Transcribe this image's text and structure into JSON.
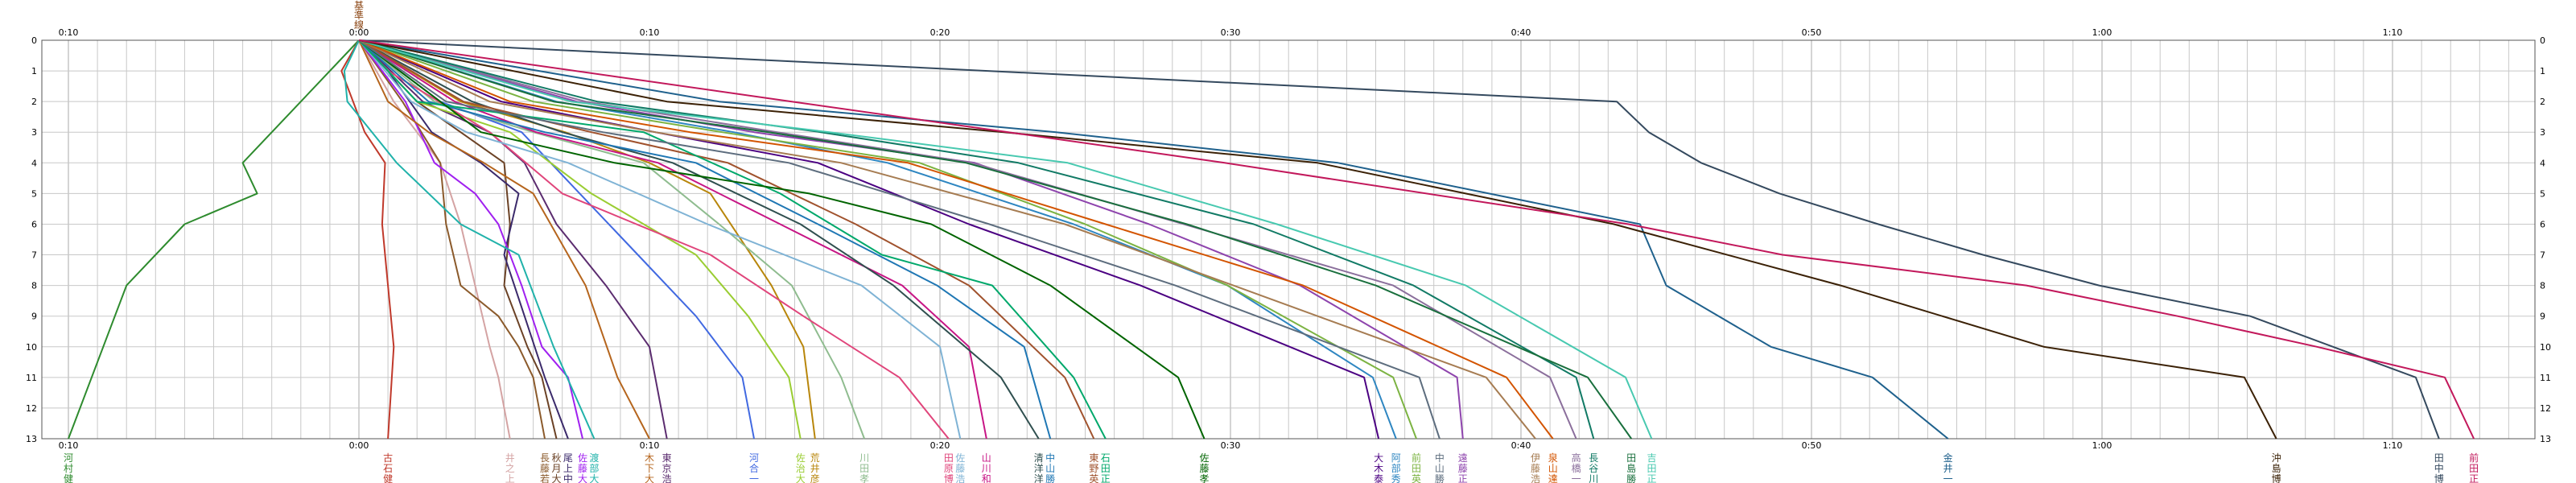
{
  "chart_data": {
    "type": "line",
    "x_unit": "minutes",
    "xlim": [
      -10,
      75
    ],
    "x_ticks": [
      {
        "value": -10,
        "label": "0:10"
      },
      {
        "value": 0,
        "label": "0:00"
      },
      {
        "value": 10,
        "label": "0:10"
      },
      {
        "value": 20,
        "label": "0:20"
      },
      {
        "value": 30,
        "label": "0:30"
      },
      {
        "value": 40,
        "label": "0:40"
      },
      {
        "value": 50,
        "label": "0:50"
      },
      {
        "value": 60,
        "label": "1:00"
      },
      {
        "value": 70,
        "label": "1:10"
      }
    ],
    "ylim": [
      0,
      13
    ],
    "y_ticks": [
      "0",
      "1",
      "2",
      "3",
      "4",
      "5",
      "6",
      "7",
      "8",
      "9",
      "10",
      "11",
      "12",
      "13"
    ],
    "y_ticks_right": [
      "0",
      "1",
      "2",
      "3",
      "4",
      "5",
      "6",
      "7",
      "8",
      "9",
      "10",
      "11",
      "12",
      "13"
    ],
    "top_marker": {
      "text": "基準線",
      "color": "#8b4513",
      "x": 0
    },
    "grid": true,
    "series": [
      {
        "name": "河村健",
        "color": "#2e8b2e",
        "x": [
          0,
          -2,
          -4,
          -3.5,
          -6,
          -8,
          -10
        ],
        "y": [
          0,
          2,
          4,
          5,
          6,
          8,
          13
        ]
      },
      {
        "name": "古石健",
        "color": "#c0392b",
        "x": [
          0,
          -0.6,
          0.2,
          0.9,
          0.8,
          1.0,
          1.1,
          1.2,
          1.0
        ],
        "y": [
          0,
          1,
          3,
          4,
          6,
          8,
          9,
          10,
          13
        ]
      },
      {
        "name": "井之上",
        "color": "#d4a3a3",
        "x": [
          0,
          1.2,
          2.8,
          3.5,
          4.0,
          4.5,
          4.8,
          5.2
        ],
        "y": [
          0,
          2,
          4,
          6,
          8,
          10,
          11,
          13
        ]
      },
      {
        "name": "長藤若",
        "color": "#8b5a2b",
        "x": [
          0,
          1.5,
          2.8,
          3.0,
          3.5,
          4.8,
          5.5,
          6.0,
          6.4
        ],
        "y": [
          0,
          2,
          4,
          6,
          8,
          9,
          10,
          11,
          13
        ]
      },
      {
        "name": "秋月大",
        "color": "#6b4226",
        "x": [
          0,
          2.0,
          3.5,
          5.0,
          5.2,
          5.0,
          5.8,
          6.3,
          6.8
        ],
        "y": [
          0,
          2,
          3,
          4,
          6,
          8,
          10,
          11,
          13
        ]
      },
      {
        "name": "尾上中",
        "color": "#3b2a6b",
        "x": [
          0,
          1.0,
          2.5,
          4.2,
          5.5,
          5.0,
          5.7,
          6.4,
          7.2
        ],
        "y": [
          0,
          1,
          3,
          4,
          5,
          7,
          9,
          11,
          13
        ]
      },
      {
        "name": "佐藤大",
        "color": "#a020f0",
        "x": [
          0,
          1.6,
          2.6,
          4.0,
          4.8,
          5.6,
          6.3,
          7.2,
          7.7
        ],
        "y": [
          0,
          2,
          4,
          5,
          6,
          8,
          10,
          11,
          13
        ]
      },
      {
        "name": "渡部大",
        "color": "#20b2aa",
        "x": [
          0,
          -0.5,
          -0.4,
          1.3,
          3.5,
          5.5,
          6.7,
          8.1
        ],
        "y": [
          0,
          1,
          2,
          4,
          6,
          7,
          10,
          13
        ]
      },
      {
        "name": "木下大",
        "color": "#b5651d",
        "x": [
          0,
          1.0,
          2.4,
          4.3,
          6.0,
          7.8,
          8.9,
          10.0
        ],
        "y": [
          0,
          2,
          3,
          4,
          5,
          8,
          11,
          13
        ]
      },
      {
        "name": "東京浩",
        "color": "#5b2c6f",
        "x": [
          0,
          2.2,
          4.5,
          5.7,
          6.8,
          8.5,
          10.0,
          10.6
        ],
        "y": [
          0,
          2,
          3,
          4,
          6,
          8,
          10,
          13
        ]
      },
      {
        "name": "河合一",
        "color": "#4169e1",
        "x": [
          0,
          2.8,
          5.6,
          7.6,
          9.6,
          11.6,
          13.2,
          13.6
        ],
        "y": [
          0,
          2,
          3,
          5,
          7,
          9,
          11,
          13
        ]
      },
      {
        "name": "佐治大",
        "color": "#9acd32",
        "x": [
          0,
          2.0,
          5.2,
          8.0,
          11.6,
          13.4,
          14.8,
          15.2
        ],
        "y": [
          0,
          2,
          3,
          5,
          7,
          9,
          11,
          13
        ]
      },
      {
        "name": "荒井彦",
        "color": "#b8860b",
        "x": [
          0,
          3.5,
          7.1,
          10.0,
          12.1,
          14.2,
          15.3,
          15.7
        ],
        "y": [
          0,
          2,
          3,
          4,
          5,
          8,
          10,
          13
        ]
      },
      {
        "name": "川田孝",
        "color": "#8fbc8f",
        "x": [
          0,
          2.6,
          6.0,
          9.8,
          12.4,
          14.9,
          16.6,
          17.4
        ],
        "y": [
          0,
          2,
          3,
          4,
          6,
          8,
          11,
          13
        ]
      },
      {
        "name": "田原博",
        "color": "#e0457b",
        "x": [
          0,
          1.0,
          4.5,
          7.0,
          12.1,
          15.3,
          18.6,
          20.3
        ],
        "y": [
          0,
          1,
          3,
          5,
          7,
          9,
          11,
          13
        ]
      },
      {
        "name": "佐藤浩",
        "color": "#7fb3d5",
        "x": [
          0,
          1.8,
          3.7,
          7.2,
          12.0,
          17.3,
          20.0,
          20.7
        ],
        "y": [
          0,
          2,
          3,
          4,
          6,
          8,
          10,
          13
        ]
      },
      {
        "name": "山川和",
        "color": "#c71585",
        "x": [
          0,
          3.3,
          6.1,
          10.3,
          14.5,
          18.7,
          21.0,
          21.6
        ],
        "y": [
          0,
          2,
          3,
          4,
          6,
          8,
          10,
          13
        ]
      },
      {
        "name": "清洋洋",
        "color": "#2f4f4f",
        "x": [
          0,
          3.9,
          7.0,
          10.8,
          15.2,
          18.4,
          22.1,
          23.4
        ],
        "y": [
          0,
          2,
          3,
          4,
          6,
          8,
          11,
          13
        ]
      },
      {
        "name": "中山勝",
        "color": "#1f77b4",
        "x": [
          0,
          2.4,
          6.4,
          11.6,
          15.8,
          19.9,
          22.9,
          23.8
        ],
        "y": [
          0,
          2,
          3,
          4,
          6,
          8,
          10,
          13
        ]
      },
      {
        "name": "東野英",
        "color": "#a0522d",
        "x": [
          0,
          3.6,
          8.0,
          12.7,
          17.1,
          21.0,
          24.3,
          25.3
        ],
        "y": [
          0,
          2,
          3,
          4,
          6,
          8,
          11,
          13
        ]
      },
      {
        "name": "石田正",
        "color": "#00a86b",
        "x": [
          0,
          2.0,
          9.8,
          14.5,
          18.0,
          21.8,
          24.6,
          25.7
        ],
        "y": [
          0,
          2,
          3,
          5,
          7,
          8,
          11,
          13
        ]
      },
      {
        "name": "佐藤孝",
        "color": "#006400",
        "x": [
          0,
          4.2,
          8.8,
          15.5,
          19.7,
          23.8,
          28.2,
          29.1
        ],
        "y": [
          0,
          3,
          4,
          5,
          6,
          8,
          11,
          13
        ]
      },
      {
        "name": "大木泰",
        "color": "#4b0082",
        "x": [
          0,
          4.9,
          10.2,
          15.8,
          21.0,
          26.9,
          34.6,
          35.1
        ],
        "y": [
          0,
          2,
          3,
          4,
          6,
          8,
          11,
          13
        ]
      },
      {
        "name": "阿部秀",
        "color": "#2e86c1",
        "x": [
          0,
          6.8,
          12.9,
          18.2,
          24.6,
          29.9,
          34.9,
          35.7
        ],
        "y": [
          0,
          2,
          3,
          4,
          6,
          8,
          11,
          13
        ]
      },
      {
        "name": "前田英",
        "color": "#7cb342",
        "x": [
          0,
          6.0,
          12.5,
          19.3,
          25.0,
          29.9,
          35.6,
          36.4
        ],
        "y": [
          0,
          2,
          3,
          4,
          6,
          8,
          11,
          13
        ]
      },
      {
        "name": "遠藤正",
        "color": "#8e44ad",
        "x": [
          0,
          7.5,
          13.6,
          21.2,
          27.2,
          32.4,
          37.8,
          38.0
        ],
        "y": [
          0,
          2,
          3,
          4,
          6,
          8,
          11,
          13
        ]
      },
      {
        "name": "中山勝",
        "color": "#5d6d7e",
        "x": [
          0,
          3.0,
          8.4,
          14.8,
          21.7,
          28.1,
          36.5,
          37.2
        ],
        "y": [
          0,
          2,
          3,
          4,
          6,
          8,
          11,
          13
        ]
      },
      {
        "name": "伊藤浩",
        "color": "#a67c52",
        "x": [
          0,
          4.5,
          10.2,
          16.6,
          24.3,
          30.1,
          38.8,
          40.5
        ],
        "y": [
          0,
          2,
          3,
          4,
          6,
          8,
          11,
          13
        ]
      },
      {
        "name": "泉山達",
        "color": "#d35400",
        "x": [
          0,
          5.2,
          11.4,
          18.9,
          25.7,
          32.5,
          39.5,
          41.1
        ],
        "y": [
          0,
          2,
          3,
          4,
          6,
          8,
          11,
          13
        ]
      },
      {
        "name": "高橋一",
        "color": "#8b6f9c",
        "x": [
          0,
          7.8,
          14.4,
          21.1,
          28.4,
          35.6,
          41.0,
          41.9
        ],
        "y": [
          0,
          2,
          3,
          4,
          6,
          8,
          11,
          13
        ]
      },
      {
        "name": "長谷川",
        "color": "#117a65",
        "x": [
          0,
          8.2,
          15.9,
          22.7,
          30.8,
          36.3,
          41.9,
          42.5
        ],
        "y": [
          0,
          2,
          3,
          4,
          6,
          8,
          11,
          13
        ]
      },
      {
        "name": "田島勝",
        "color": "#196f3d",
        "x": [
          0,
          6.7,
          14.1,
          20.9,
          28.5,
          35.0,
          42.3,
          43.8
        ],
        "y": [
          0,
          2,
          3,
          4,
          6,
          8,
          11,
          13
        ]
      },
      {
        "name": "吉田正",
        "color": "#48c9b0",
        "x": [
          0,
          7.3,
          16.2,
          24.4,
          31.6,
          38.1,
          43.6,
          44.5
        ],
        "y": [
          0,
          2,
          3,
          4,
          6,
          8,
          11,
          13
        ]
      },
      {
        "name": "金井一",
        "color": "#1f618d",
        "x": [
          0,
          12.4,
          24.0,
          33.7,
          44.1,
          45.0,
          48.6,
          52.1,
          54.7
        ],
        "y": [
          0,
          2,
          3,
          4,
          6,
          8,
          10,
          11,
          13
        ]
      },
      {
        "name": "沖島博",
        "color": "#3b2106",
        "x": [
          0,
          10.6,
          22.2,
          33.0,
          43.2,
          51.0,
          58.0,
          64.9,
          66.0
        ],
        "y": [
          0,
          2,
          3,
          4,
          6,
          8,
          10,
          11,
          13
        ]
      },
      {
        "name": "田中博",
        "color": "#34495e",
        "x": [
          0,
          43.3,
          44.4,
          46.2,
          48.9,
          52.3,
          55.9,
          59.9,
          65.1,
          70.8,
          71.6
        ],
        "y": [
          0,
          2,
          3,
          4,
          5,
          6,
          7,
          8,
          9,
          11,
          13
        ]
      },
      {
        "name": "前田正",
        "color": "#c2185b",
        "x": [
          0,
          14.9,
          29.8,
          43.7,
          49.0,
          57.4,
          62.6,
          67.4,
          71.8,
          72.8
        ],
        "y": [
          0,
          2,
          4,
          6,
          7,
          8,
          9,
          10,
          11,
          13
        ]
      }
    ]
  }
}
